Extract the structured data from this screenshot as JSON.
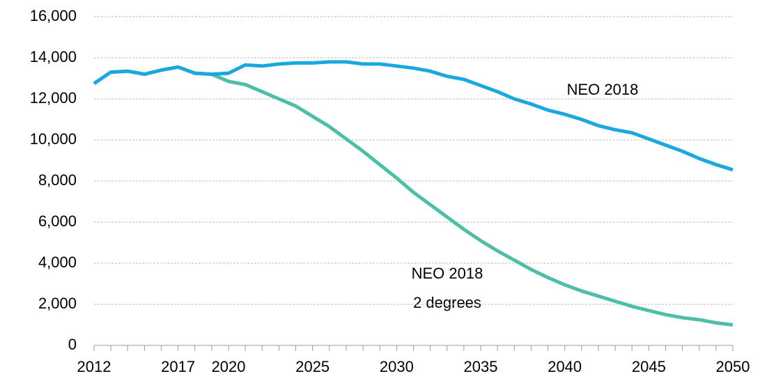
{
  "chart_data": {
    "type": "line",
    "x": [
      2012,
      2013,
      2014,
      2015,
      2016,
      2017,
      2018,
      2019,
      2020,
      2021,
      2022,
      2023,
      2024,
      2025,
      2026,
      2027,
      2028,
      2029,
      2030,
      2031,
      2032,
      2033,
      2034,
      2035,
      2036,
      2037,
      2038,
      2039,
      2040,
      2041,
      2042,
      2043,
      2044,
      2045,
      2046,
      2047,
      2048,
      2049,
      2050
    ],
    "series": [
      {
        "color": "#1ba7e0",
        "values": [
          12750,
          13300,
          13350,
          13200,
          13400,
          13550,
          13250,
          13200,
          13250,
          13650,
          13600,
          13700,
          13750,
          13750,
          13800,
          13800,
          13700,
          13700,
          13600,
          13500,
          13350,
          13100,
          12950,
          12650,
          12350,
          12000,
          11750,
          11450,
          11250,
          11000,
          10700,
          10500,
          10350,
          10050,
          9750,
          9450,
          9100,
          8800,
          8550
        ]
      },
      {
        "color": "#4cbfa6",
        "values": [
          12750,
          13300,
          13350,
          13200,
          13400,
          13550,
          13250,
          13200,
          12850,
          12700,
          12350,
          12000,
          11650,
          11150,
          10650,
          10050,
          9450,
          8800,
          8150,
          7450,
          6850,
          6250,
          5650,
          5100,
          4600,
          4150,
          3700,
          3300,
          2950,
          2650,
          2400,
          2150,
          1900,
          1700,
          1500,
          1350,
          1250,
          1100,
          1000
        ]
      }
    ],
    "annotations": [
      "NEO 2018",
      "NEO 2018",
      "2 degrees"
    ],
    "xlim": [
      2012,
      2050
    ],
    "xticks": [
      2012,
      2017,
      2020,
      2025,
      2030,
      2035,
      2040,
      2045,
      2050
    ],
    "ylim": [
      0,
      16000
    ],
    "yticks": [
      0,
      {
        "value": 2000,
        "label": "2,000"
      },
      {
        "value": 4000,
        "label": "4,000"
      },
      {
        "value": 6000,
        "label": "6,000"
      },
      {
        "value": 8000,
        "label": "8,000"
      },
      {
        "value": 10000,
        "label": "10,000"
      },
      {
        "value": 12000,
        "label": "12,000"
      },
      {
        "value": 14000,
        "label": "14,000"
      },
      {
        "value": 16000,
        "label": "16,000"
      }
    ],
    "grid": true
  }
}
